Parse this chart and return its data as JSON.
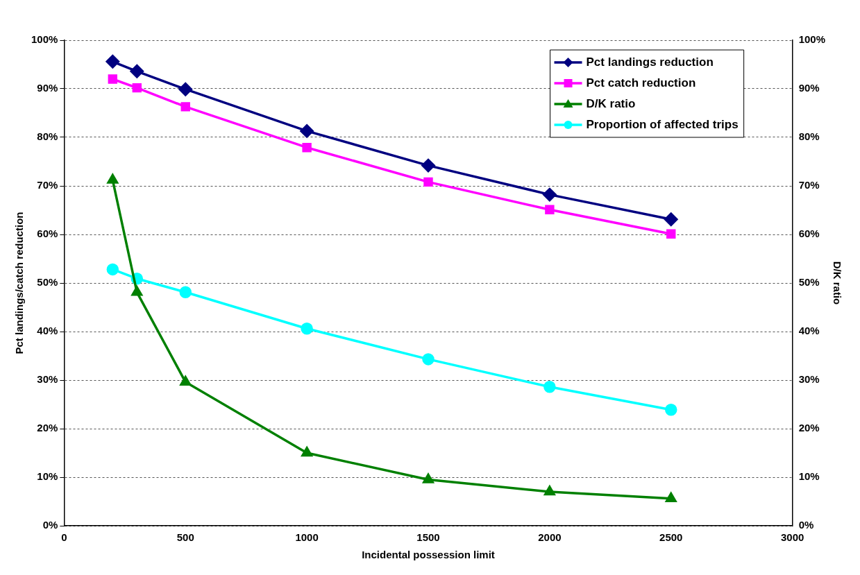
{
  "chart_data": {
    "type": "line",
    "xlabel": "Incidental possession limit",
    "ylabel": "Pct landings/catch reduction",
    "y2label": "D/K ratio",
    "x": [
      200,
      300,
      500,
      1000,
      1500,
      2000,
      2500
    ],
    "series": [
      {
        "name": "Pct landings reduction",
        "color": "#000080",
        "marker": "diamond",
        "values": [
          95.6,
          93.6,
          89.9,
          81.3,
          74.2,
          68.2,
          63.1
        ]
      },
      {
        "name": "Pct catch reduction",
        "color": "#ff00ff",
        "marker": "square",
        "values": [
          92.0,
          90.2,
          86.3,
          77.9,
          70.8,
          65.1,
          60.1
        ]
      },
      {
        "name": "D/K ratio",
        "color": "#008000",
        "marker": "triangle",
        "axis": "y2",
        "values": [
          71.2,
          48.1,
          29.6,
          15.0,
          9.5,
          7.0,
          5.6
        ]
      },
      {
        "name": "Proportion of affected trips",
        "color": "#00ffff",
        "marker": "circle",
        "values": [
          52.8,
          50.9,
          48.1,
          40.6,
          34.3,
          28.6,
          23.9
        ]
      }
    ],
    "xlim": [
      0,
      3000
    ],
    "xticks": [
      0,
      500,
      1000,
      1500,
      2000,
      2500,
      3000
    ],
    "ylim": [
      0,
      100
    ],
    "yticks": [
      {
        "value": 0,
        "label": "0%"
      },
      {
        "value": 10,
        "label": "10%"
      },
      {
        "value": 20,
        "label": "20%"
      },
      {
        "value": 30,
        "label": "30%"
      },
      {
        "value": 40,
        "label": "40%"
      },
      {
        "value": 50,
        "label": "50%"
      },
      {
        "value": 60,
        "label": "60%"
      },
      {
        "value": 70,
        "label": "70%"
      },
      {
        "value": 80,
        "label": "80%"
      },
      {
        "value": 90,
        "label": "90%"
      },
      {
        "value": 100,
        "label": "100%"
      }
    ],
    "y2lim": [
      0,
      100
    ],
    "y2ticks": [
      {
        "value": 0,
        "label": "0%"
      },
      {
        "value": 10,
        "label": "10%"
      },
      {
        "value": 20,
        "label": "20%"
      },
      {
        "value": 30,
        "label": "30%"
      },
      {
        "value": 40,
        "label": "40%"
      },
      {
        "value": 50,
        "label": "50%"
      },
      {
        "value": 60,
        "label": "60%"
      },
      {
        "value": 70,
        "label": "70%"
      },
      {
        "value": 80,
        "label": "80%"
      },
      {
        "value": 90,
        "label": "90%"
      },
      {
        "value": 100,
        "label": "100%"
      }
    ],
    "grid": "y",
    "legend": "top right",
    "line_style": "solid"
  }
}
